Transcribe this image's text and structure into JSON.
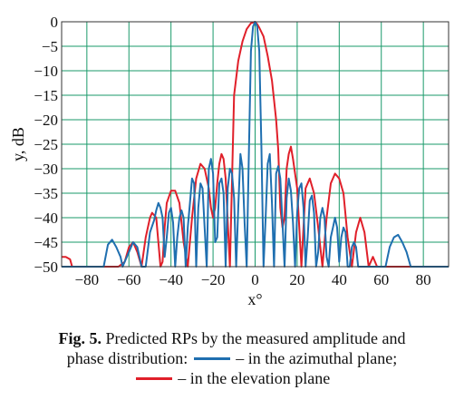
{
  "chart_data": {
    "type": "line",
    "title": "",
    "xlabel": "x°",
    "ylabel": "y, dB",
    "xlim": [
      -92,
      92
    ],
    "ylim": [
      -50,
      0
    ],
    "x_ticks": [
      -80,
      -60,
      -40,
      -20,
      0,
      20,
      40,
      60,
      80
    ],
    "x_tick_labels": [
      "−80",
      "−60",
      "−40",
      "−20",
      "0",
      "20",
      "40",
      "60",
      "80"
    ],
    "y_ticks": [
      0,
      -5,
      -10,
      -15,
      -20,
      -25,
      -30,
      -35,
      -40,
      -45,
      -50
    ],
    "y_tick_labels": [
      "0",
      "−5",
      "−10",
      "−15",
      "−20",
      "−25",
      "−30",
      "−35",
      "−40",
      "−45",
      "−50"
    ],
    "grid": true,
    "grid_color": "#1a9a6a",
    "series": [
      {
        "name": "in the elevation plane",
        "color": "#e0202a",
        "x": [
          -92,
          -90,
          -88,
          -87,
          -86,
          -84,
          -82,
          -80,
          -74,
          -68,
          -65,
          -62,
          -60,
          -58,
          -56,
          -54,
          -52,
          -50,
          -49,
          -47,
          -45,
          -44,
          -43,
          -42,
          -40,
          -38,
          -36,
          -34,
          -32,
          -30,
          -28,
          -26,
          -24,
          -22,
          -21,
          -20,
          -19,
          -18,
          -17,
          -16,
          -15,
          -14,
          -12,
          -10,
          -8,
          -6,
          -4,
          -2,
          0,
          1,
          2,
          4,
          6,
          8,
          10,
          11,
          12,
          13,
          14,
          15,
          16,
          17,
          18,
          20,
          22,
          24,
          26,
          28,
          30,
          32,
          34,
          36,
          38,
          40,
          42,
          44,
          46,
          48,
          50,
          52,
          54,
          56,
          58,
          60,
          62,
          64,
          66,
          70,
          76,
          80,
          86,
          92
        ],
        "y": [
          -48,
          -48,
          -48.5,
          -50,
          -50,
          -50,
          -50,
          -50,
          -50,
          -50,
          -50,
          -49,
          -46,
          -45,
          -47,
          -50,
          -44,
          -40,
          -39,
          -40,
          -50,
          -49,
          -42,
          -37,
          -34.5,
          -34.5,
          -37,
          -45,
          -50,
          -40,
          -32,
          -29,
          -30,
          -34,
          -38,
          -40,
          -38,
          -33,
          -29,
          -27,
          -28,
          -32,
          -50,
          -15,
          -8,
          -4,
          -1.5,
          -0.3,
          0,
          -0.5,
          -1.2,
          -3,
          -7,
          -12,
          -20,
          -26,
          -38,
          -42,
          -40,
          -30,
          -27,
          -25.5,
          -28,
          -34,
          -50,
          -34,
          -32,
          -35,
          -42,
          -50,
          -40,
          -33,
          -31,
          -32,
          -35,
          -44,
          -50,
          -43,
          -40,
          -43,
          -50,
          -48,
          -50,
          -50,
          -50,
          -50,
          -50,
          -50,
          -50,
          -50,
          -50,
          -50
        ]
      },
      {
        "name": "in the azimuthal plane",
        "color": "#1f6fb0",
        "x": [
          -92,
          -74,
          -72,
          -70,
          -68,
          -66,
          -64,
          -63,
          -62,
          -60,
          -58,
          -56,
          -54,
          -52,
          -50,
          -48,
          -47,
          -46,
          -45,
          -44,
          -43,
          -42,
          -41,
          -40,
          -39,
          -38,
          -37,
          -36,
          -35,
          -34,
          -33,
          -32,
          -31,
          -30,
          -29,
          -28,
          -27,
          -26,
          -25,
          -24,
          -23,
          -22,
          -21,
          -20,
          -19,
          -18,
          -17,
          -16,
          -15,
          -14,
          -13,
          -12,
          -11,
          -10,
          -9,
          -8,
          -7,
          -6,
          -5,
          -4,
          -3,
          -2,
          -1,
          0,
          1,
          2,
          3,
          4,
          5,
          6,
          7,
          8,
          9,
          10,
          11,
          12,
          13,
          14,
          15,
          16,
          17,
          18,
          19,
          20,
          21,
          22,
          23,
          24,
          25,
          26,
          27,
          28,
          29,
          30,
          31,
          32,
          33,
          34,
          35,
          36,
          37,
          38,
          39,
          40,
          41,
          42,
          43,
          44,
          45,
          46,
          47,
          48,
          49,
          50,
          52,
          54,
          56,
          58,
          60,
          62,
          64,
          66,
          68,
          70,
          72,
          74,
          76,
          78,
          80,
          92
        ],
        "y": [
          -50,
          -50,
          -50,
          -45.5,
          -44.5,
          -46,
          -48,
          -50,
          -49,
          -47,
          -45,
          -46,
          -50,
          -50,
          -43,
          -40.5,
          -38.5,
          -37,
          -38,
          -40,
          -48,
          -44,
          -39,
          -38,
          -41,
          -50,
          -44,
          -40,
          -38.5,
          -40,
          -50,
          -42,
          -37,
          -32,
          -33,
          -50,
          -38,
          -33,
          -34,
          -42,
          -50,
          -30,
          -28,
          -31,
          -45,
          -44,
          -33,
          -32,
          -35,
          -50,
          -34,
          -30,
          -31,
          -36,
          -50,
          -38,
          -27,
          -30,
          -41,
          -50,
          -28,
          -6,
          -1,
          0,
          -1,
          -6,
          -26,
          -50,
          -40,
          -29,
          -27,
          -37,
          -50,
          -31,
          -29.5,
          -32,
          -41,
          -50,
          -36,
          -32,
          -34.5,
          -41,
          -50,
          -39,
          -34,
          -33,
          -38,
          -50,
          -44,
          -36.5,
          -35.5,
          -39,
          -50,
          -47,
          -40,
          -38,
          -40,
          -48,
          -50,
          -44,
          -42,
          -40,
          -42,
          -49,
          -44,
          -42,
          -43,
          -50,
          -50,
          -46,
          -45,
          -46,
          -50,
          -50,
          -50,
          -50,
          -50,
          -50,
          -50,
          -50,
          -46,
          -44,
          -43.5,
          -45,
          -47,
          -50,
          -50,
          -50,
          -50,
          -50
        ]
      }
    ]
  },
  "caption": {
    "fig_label": "Fig. 5.",
    "line1": " Predicted RPs by the measured amplitude and",
    "line2_prefix": "phase distribution: ",
    "line2_suffix": " – in the azimuthal plane;",
    "line3_suffix": " – in the elevation plane"
  }
}
